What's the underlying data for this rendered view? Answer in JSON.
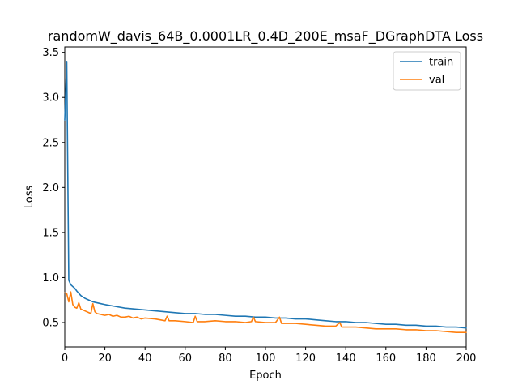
{
  "chart_data": {
    "type": "line",
    "title": "randomW_davis_64B_0.0001LR_0.4D_200E_msaF_DGraphDTA Loss",
    "xlabel": "Epoch",
    "ylabel": "Loss",
    "xlim": [
      0,
      200
    ],
    "ylim": [
      0.23,
      3.56
    ],
    "xticks": [
      0,
      20,
      40,
      60,
      80,
      100,
      120,
      140,
      160,
      180,
      200
    ],
    "yticks": [
      0.5,
      1.0,
      1.5,
      2.0,
      2.5,
      3.0,
      3.5
    ],
    "ytick_labels": [
      "0.5",
      "1.0",
      "1.5",
      "2.0",
      "2.5",
      "3.0",
      "3.5"
    ],
    "grid": false,
    "legend_position": "top-right",
    "series": [
      {
        "name": "train",
        "color": "#1f77b4",
        "x": [
          0,
          1,
          2,
          3,
          4,
          5,
          6,
          8,
          10,
          12,
          14,
          16,
          18,
          20,
          25,
          30,
          35,
          40,
          45,
          50,
          55,
          60,
          65,
          70,
          75,
          80,
          85,
          90,
          95,
          100,
          105,
          110,
          115,
          120,
          125,
          130,
          135,
          140,
          145,
          150,
          155,
          160,
          165,
          170,
          175,
          180,
          185,
          190,
          195,
          200
        ],
        "y": [
          2.75,
          3.4,
          0.97,
          0.92,
          0.9,
          0.88,
          0.85,
          0.8,
          0.77,
          0.75,
          0.73,
          0.72,
          0.71,
          0.7,
          0.68,
          0.66,
          0.65,
          0.64,
          0.63,
          0.62,
          0.61,
          0.6,
          0.6,
          0.59,
          0.59,
          0.58,
          0.57,
          0.57,
          0.56,
          0.56,
          0.55,
          0.55,
          0.54,
          0.54,
          0.53,
          0.52,
          0.51,
          0.51,
          0.5,
          0.5,
          0.49,
          0.48,
          0.48,
          0.47,
          0.47,
          0.46,
          0.46,
          0.45,
          0.45,
          0.44
        ]
      },
      {
        "name": "val",
        "color": "#ff7f0e",
        "x": [
          0,
          1,
          2,
          3,
          4,
          5,
          6,
          7,
          8,
          9,
          10,
          12,
          13,
          14,
          15,
          16,
          18,
          20,
          22,
          24,
          26,
          28,
          30,
          32,
          34,
          36,
          38,
          40,
          45,
          50,
          51,
          52,
          55,
          60,
          64,
          65,
          66,
          70,
          75,
          80,
          85,
          90,
          93,
          94,
          95,
          100,
          105,
          107,
          108,
          110,
          115,
          120,
          125,
          130,
          135,
          137,
          138,
          140,
          145,
          150,
          155,
          160,
          165,
          170,
          175,
          180,
          185,
          190,
          195,
          200
        ],
        "y": [
          0.83,
          0.82,
          0.73,
          0.84,
          0.7,
          0.67,
          0.66,
          0.72,
          0.65,
          0.64,
          0.63,
          0.61,
          0.6,
          0.71,
          0.62,
          0.6,
          0.59,
          0.58,
          0.59,
          0.57,
          0.58,
          0.56,
          0.56,
          0.57,
          0.55,
          0.56,
          0.54,
          0.55,
          0.54,
          0.52,
          0.57,
          0.52,
          0.52,
          0.51,
          0.5,
          0.57,
          0.51,
          0.51,
          0.52,
          0.51,
          0.51,
          0.5,
          0.51,
          0.56,
          0.51,
          0.5,
          0.5,
          0.56,
          0.49,
          0.49,
          0.49,
          0.48,
          0.47,
          0.46,
          0.46,
          0.5,
          0.45,
          0.45,
          0.45,
          0.44,
          0.43,
          0.43,
          0.43,
          0.42,
          0.42,
          0.41,
          0.41,
          0.4,
          0.39,
          0.39
        ]
      }
    ]
  }
}
